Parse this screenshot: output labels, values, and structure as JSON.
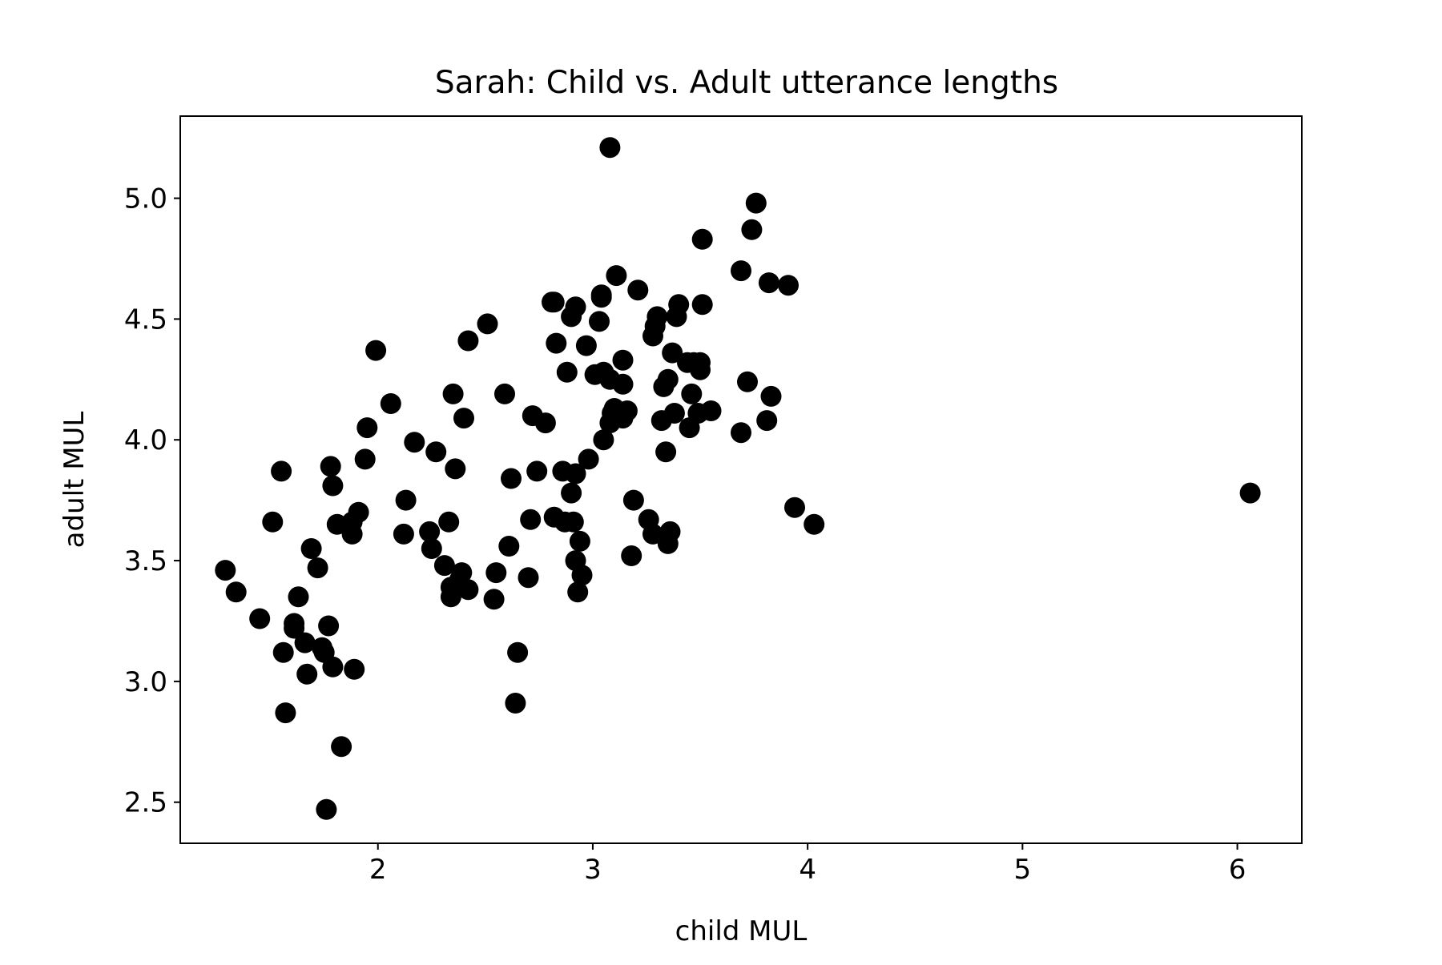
{
  "chart_data": {
    "type": "scatter",
    "title": "Sarah: Child vs. Adult utterance lengths",
    "xlabel": "child MUL",
    "ylabel": "adult MUL",
    "xlim": [
      1.08,
      6.3
    ],
    "ylim": [
      2.33,
      5.34
    ],
    "xticks": [
      {
        "value": 2,
        "label": "2"
      },
      {
        "value": 3,
        "label": "3"
      },
      {
        "value": 4,
        "label": "4"
      },
      {
        "value": 5,
        "label": "5"
      },
      {
        "value": 6,
        "label": "6"
      }
    ],
    "yticks": [
      {
        "value": 2.5,
        "label": "2.5"
      },
      {
        "value": 3.0,
        "label": "3.0"
      },
      {
        "value": 3.5,
        "label": "3.5"
      },
      {
        "value": 4.0,
        "label": "4.0"
      },
      {
        "value": 4.5,
        "label": "4.5"
      },
      {
        "value": 5.0,
        "label": "5.0"
      }
    ],
    "grid": false,
    "marker_color": "#000000",
    "series": [
      {
        "points": [
          [
            1.29,
            3.46
          ],
          [
            1.34,
            3.37
          ],
          [
            1.45,
            3.26
          ],
          [
            1.51,
            3.66
          ],
          [
            1.55,
            3.87
          ],
          [
            1.56,
            3.12
          ],
          [
            1.57,
            2.87
          ],
          [
            1.61,
            3.24
          ],
          [
            1.61,
            3.22
          ],
          [
            1.63,
            3.35
          ],
          [
            1.66,
            3.16
          ],
          [
            1.67,
            3.03
          ],
          [
            1.69,
            3.55
          ],
          [
            1.72,
            3.47
          ],
          [
            1.74,
            3.14
          ],
          [
            1.75,
            3.12
          ],
          [
            1.76,
            2.47
          ],
          [
            1.77,
            3.23
          ],
          [
            1.78,
            3.89
          ],
          [
            1.79,
            3.81
          ],
          [
            1.79,
            3.06
          ],
          [
            1.81,
            3.65
          ],
          [
            1.83,
            2.73
          ],
          [
            1.88,
            3.61
          ],
          [
            1.88,
            3.66
          ],
          [
            1.89,
            3.05
          ],
          [
            1.91,
            3.7
          ],
          [
            1.94,
            3.92
          ],
          [
            1.95,
            4.05
          ],
          [
            1.99,
            4.37
          ],
          [
            2.06,
            4.15
          ],
          [
            2.12,
            3.61
          ],
          [
            2.13,
            3.75
          ],
          [
            2.17,
            3.99
          ],
          [
            2.24,
            3.62
          ],
          [
            2.25,
            3.55
          ],
          [
            2.27,
            3.95
          ],
          [
            2.31,
            3.48
          ],
          [
            2.33,
            3.66
          ],
          [
            2.34,
            3.35
          ],
          [
            2.34,
            3.39
          ],
          [
            2.35,
            4.19
          ],
          [
            2.36,
            3.88
          ],
          [
            2.38,
            3.42
          ],
          [
            2.39,
            3.45
          ],
          [
            2.4,
            4.09
          ],
          [
            2.42,
            3.38
          ],
          [
            2.42,
            4.41
          ],
          [
            2.51,
            4.48
          ],
          [
            2.54,
            3.34
          ],
          [
            2.55,
            3.45
          ],
          [
            2.59,
            4.19
          ],
          [
            2.61,
            3.56
          ],
          [
            2.62,
            3.84
          ],
          [
            2.64,
            2.91
          ],
          [
            2.65,
            3.12
          ],
          [
            2.7,
            3.43
          ],
          [
            2.71,
            3.67
          ],
          [
            2.72,
            4.1
          ],
          [
            2.74,
            3.87
          ],
          [
            2.78,
            4.07
          ],
          [
            2.81,
            4.57
          ],
          [
            2.82,
            3.68
          ],
          [
            2.82,
            4.57
          ],
          [
            2.83,
            4.4
          ],
          [
            2.86,
            3.87
          ],
          [
            2.87,
            3.66
          ],
          [
            2.88,
            4.28
          ],
          [
            2.9,
            4.51
          ],
          [
            2.9,
            3.78
          ],
          [
            2.91,
            3.66
          ],
          [
            2.92,
            3.5
          ],
          [
            2.92,
            3.86
          ],
          [
            2.92,
            4.55
          ],
          [
            2.93,
            3.37
          ],
          [
            2.94,
            3.58
          ],
          [
            2.95,
            3.44
          ],
          [
            2.97,
            4.39
          ],
          [
            2.98,
            3.92
          ],
          [
            3.01,
            4.27
          ],
          [
            3.03,
            4.49
          ],
          [
            3.04,
            4.6
          ],
          [
            3.04,
            4.59
          ],
          [
            3.05,
            4.0
          ],
          [
            3.05,
            4.28
          ],
          [
            3.08,
            5.21
          ],
          [
            3.08,
            4.25
          ],
          [
            3.08,
            4.07
          ],
          [
            3.09,
            4.11
          ],
          [
            3.1,
            4.13
          ],
          [
            3.11,
            4.68
          ],
          [
            3.13,
            4.1
          ],
          [
            3.14,
            4.23
          ],
          [
            3.14,
            4.33
          ],
          [
            3.14,
            4.09
          ],
          [
            3.16,
            4.12
          ],
          [
            3.18,
            3.52
          ],
          [
            3.19,
            3.75
          ],
          [
            3.21,
            4.62
          ],
          [
            3.26,
            3.67
          ],
          [
            3.28,
            3.61
          ],
          [
            3.28,
            4.43
          ],
          [
            3.29,
            4.47
          ],
          [
            3.3,
            4.51
          ],
          [
            3.32,
            4.08
          ],
          [
            3.33,
            4.22
          ],
          [
            3.34,
            3.95
          ],
          [
            3.35,
            3.57
          ],
          [
            3.35,
            4.25
          ],
          [
            3.36,
            3.62
          ],
          [
            3.37,
            4.36
          ],
          [
            3.38,
            4.11
          ],
          [
            3.39,
            4.51
          ],
          [
            3.4,
            4.56
          ],
          [
            3.44,
            4.32
          ],
          [
            3.45,
            4.05
          ],
          [
            3.46,
            4.19
          ],
          [
            3.47,
            4.32
          ],
          [
            3.49,
            4.11
          ],
          [
            3.5,
            4.29
          ],
          [
            3.5,
            4.32
          ],
          [
            3.51,
            4.56
          ],
          [
            3.51,
            4.83
          ],
          [
            3.55,
            4.12
          ],
          [
            3.69,
            4.7
          ],
          [
            3.69,
            4.03
          ],
          [
            3.72,
            4.24
          ],
          [
            3.74,
            4.87
          ],
          [
            3.76,
            4.98
          ],
          [
            3.81,
            4.08
          ],
          [
            3.82,
            4.65
          ],
          [
            3.83,
            4.18
          ],
          [
            3.91,
            4.64
          ],
          [
            3.94,
            3.72
          ],
          [
            4.03,
            3.65
          ],
          [
            6.06,
            3.78
          ]
        ]
      }
    ]
  }
}
